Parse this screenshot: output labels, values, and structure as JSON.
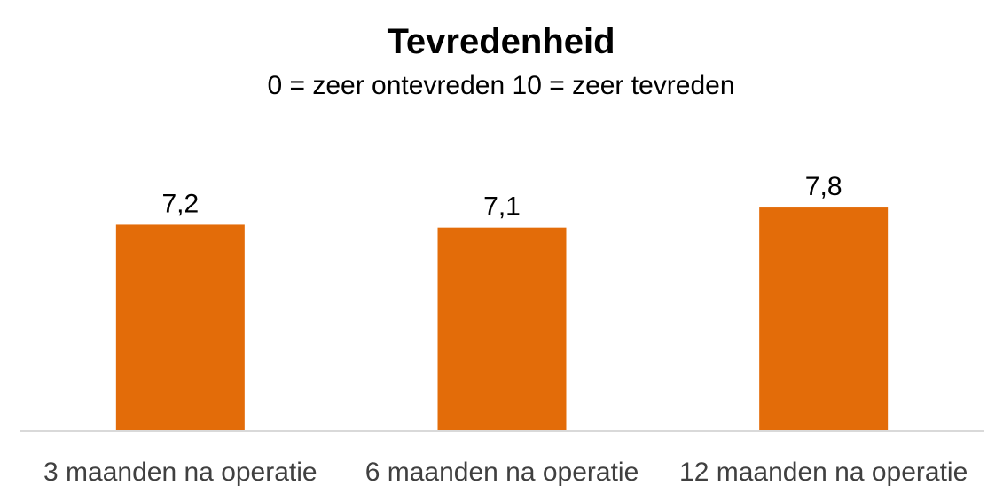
{
  "chart_data": {
    "type": "bar",
    "title": "Tevredenheid",
    "subtitle": "0 = zeer ontevreden  10 = zeer tevreden",
    "categories": [
      "3 maanden na operatie",
      "6 maanden na operatie",
      "12 maanden na operatie"
    ],
    "values": [
      7.2,
      7.1,
      7.8
    ],
    "data_labels": [
      "7,2",
      "7,1",
      "7,8"
    ],
    "ylim": [
      0,
      10
    ],
    "grid": false,
    "legend": "none",
    "bar_color": "#E36C09",
    "axis_color": "#D9D9D9"
  }
}
